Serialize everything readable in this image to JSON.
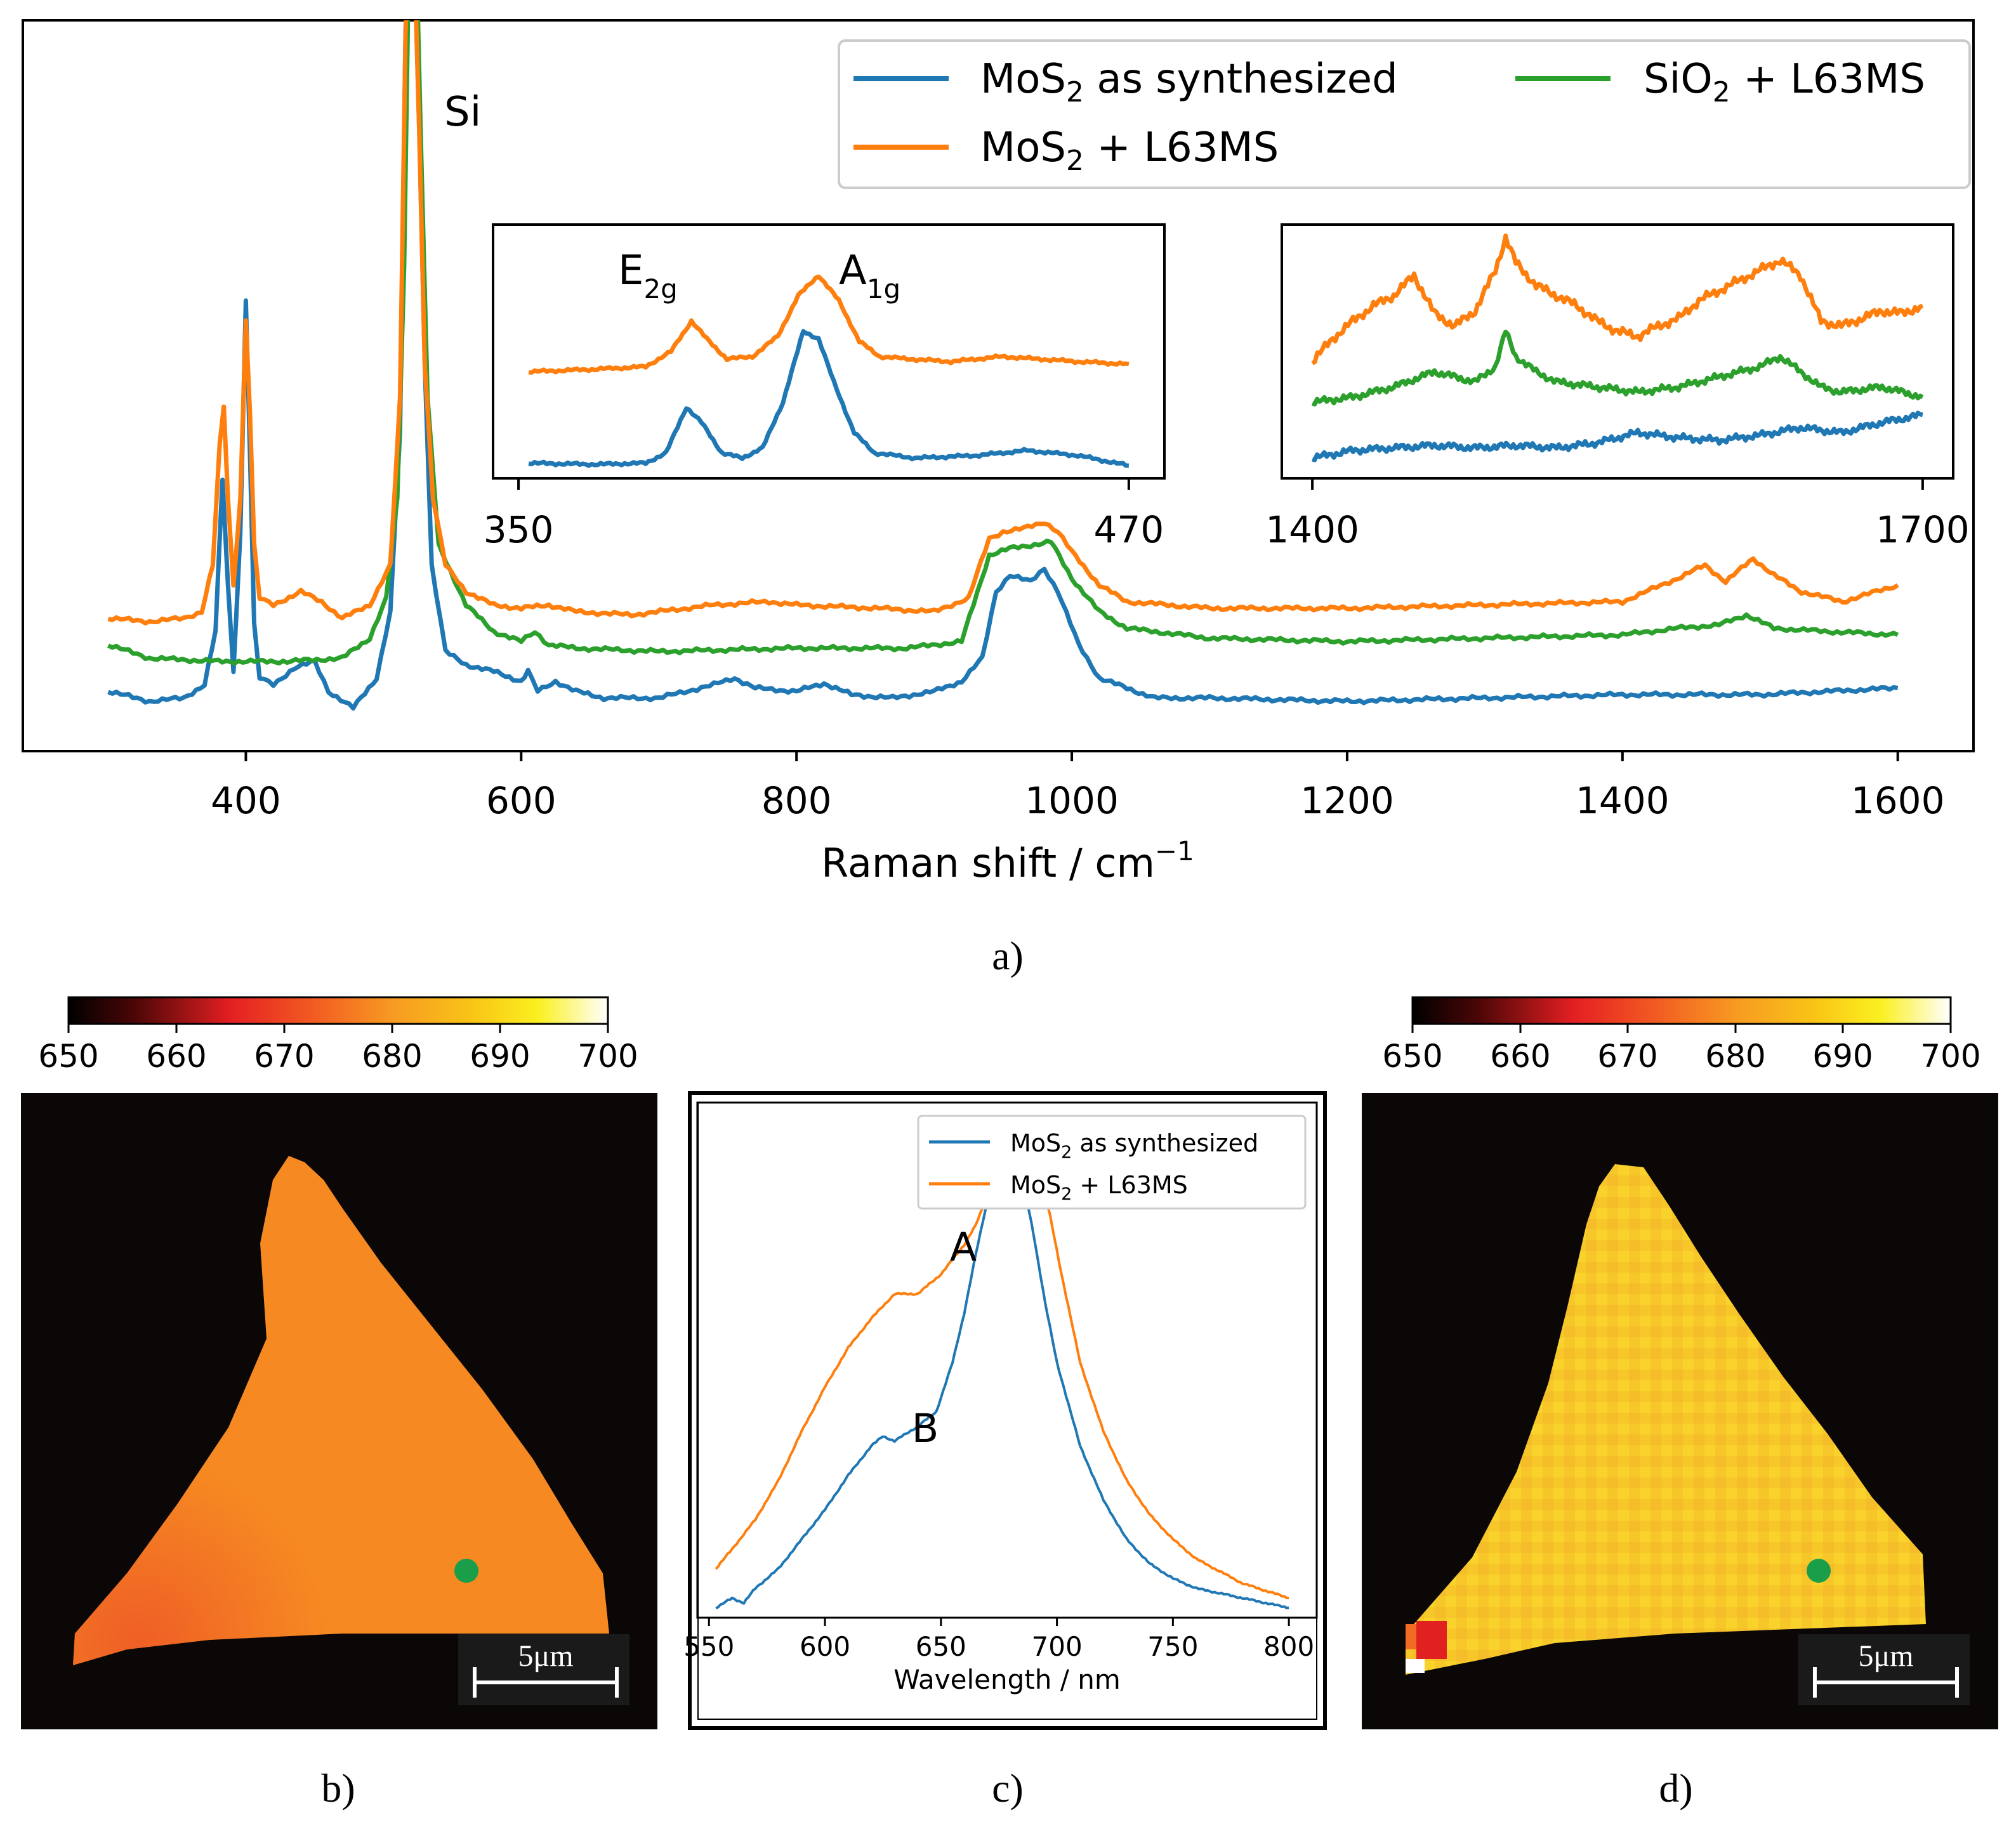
{
  "colors": {
    "blue": "#1f77b4",
    "orange": "#ff7f0e",
    "green": "#2ca02c",
    "map_bg": "#0b0707",
    "dot": "#1a9e4a"
  },
  "captions": {
    "a": "a)",
    "b": "b)",
    "c": "c)",
    "d": "d)"
  },
  "chart_data": [
    {
      "id": "a",
      "type": "line",
      "title": "",
      "xlabel_main": "Raman shift / cm",
      "xlabel_sup": "−1",
      "ylabel": "",
      "xlim": [
        238,
        1655
      ],
      "ylim": [
        -0.3,
        10.7
      ],
      "xticks": [
        400,
        600,
        800,
        1000,
        1200,
        1400,
        1600
      ],
      "xtick_labels": [
        "400",
        "600",
        "800",
        "1000",
        "1200",
        "1400",
        "1600"
      ],
      "annotations": [
        {
          "text": "Si",
          "x": 540,
          "y": 9.35
        }
      ],
      "legend": {
        "placement": "top-right",
        "entries": [
          {
            "pre": "MoS",
            "sub": "2",
            "post": " as synthesized",
            "series": "MoS2 as synthesized"
          },
          {
            "pre": "SiO",
            "sub": "2",
            "post": " + L63MS",
            "series": "SiO2 + L63MS"
          },
          {
            "pre": "MoS",
            "sub": "2",
            "post": " + L63MS",
            "series": "MoS2 + L63MS"
          }
        ]
      },
      "series": [
        {
          "name": "MoS2 as synthesized",
          "color": "blue",
          "x": [
            300,
            330,
            355,
            370,
            378,
            383,
            387,
            391,
            396,
            400,
            403,
            406,
            410,
            420,
            435,
            450,
            460,
            478,
            495,
            505,
            512,
            516,
            519,
            522,
            526,
            530,
            535,
            545,
            560,
            580,
            600,
            605,
            612,
            625,
            640,
            660,
            700,
            740,
            755,
            770,
            800,
            820,
            840,
            870,
            900,
            920,
            935,
            945,
            955,
            970,
            980,
            990,
            1005,
            1020,
            1040,
            1060,
            1100,
            1200,
            1300,
            1400,
            1500,
            1600
          ],
          "y": [
            0.6,
            0.45,
            0.5,
            0.7,
            1.5,
            3.8,
            2.2,
            0.9,
            3.0,
            6.5,
            4.2,
            1.6,
            0.8,
            0.7,
            0.95,
            1.05,
            0.6,
            0.35,
            0.8,
            1.8,
            4.5,
            10.5,
            12.5,
            12.0,
            9.0,
            5.5,
            2.5,
            1.2,
            1.0,
            0.9,
            0.75,
            0.9,
            0.6,
            0.75,
            0.6,
            0.5,
            0.5,
            0.7,
            0.8,
            0.65,
            0.6,
            0.72,
            0.55,
            0.5,
            0.6,
            0.75,
            1.1,
            2.1,
            2.35,
            2.25,
            2.45,
            2.1,
            1.3,
            0.8,
            0.65,
            0.5,
            0.5,
            0.45,
            0.5,
            0.55,
            0.55,
            0.65
          ]
        },
        {
          "name": "SiO2 + L63MS",
          "color": "green",
          "x": [
            300,
            330,
            380,
            430,
            470,
            490,
            502,
            510,
            515,
            519,
            523,
            527,
            532,
            540,
            560,
            580,
            600,
            610,
            620,
            640,
            700,
            800,
            880,
            920,
            940,
            955,
            970,
            985,
            1000,
            1020,
            1040,
            1100,
            1200,
            1300,
            1400,
            1440,
            1470,
            1490,
            1510,
            1550,
            1600
          ],
          "y": [
            1.3,
            1.1,
            1.05,
            1.05,
            1.1,
            1.4,
            2.0,
            3.5,
            7.0,
            12.5,
            12.5,
            9.0,
            5.0,
            2.8,
            1.9,
            1.5,
            1.35,
            1.5,
            1.3,
            1.25,
            1.2,
            1.25,
            1.25,
            1.35,
            2.65,
            2.75,
            2.8,
            2.85,
            2.3,
            1.8,
            1.55,
            1.4,
            1.35,
            1.4,
            1.45,
            1.55,
            1.6,
            1.75,
            1.55,
            1.5,
            1.45
          ]
        },
        {
          "name": "MoS2 + L63MS",
          "color": "orange",
          "x": [
            300,
            330,
            355,
            368,
            376,
            381,
            384,
            387,
            391,
            396,
            400,
            403,
            406,
            410,
            420,
            440,
            455,
            470,
            490,
            505,
            512,
            516,
            519,
            522,
            526,
            530,
            536,
            545,
            560,
            580,
            600,
            620,
            640,
            680,
            740,
            780,
            800,
            860,
            900,
            925,
            940,
            950,
            965,
            980,
            990,
            1000,
            1020,
            1040,
            1100,
            1200,
            1300,
            1400,
            1440,
            1460,
            1475,
            1495,
            1510,
            1530,
            1560,
            1600
          ],
          "y": [
            1.7,
            1.65,
            1.7,
            1.8,
            2.5,
            4.3,
            4.9,
            3.5,
            2.2,
            3.5,
            6.2,
            4.8,
            2.8,
            2.0,
            1.9,
            2.1,
            1.95,
            1.7,
            1.9,
            2.5,
            5.0,
            10.5,
            12.5,
            12.0,
            9.0,
            5.5,
            3.5,
            2.5,
            2.1,
            1.9,
            1.85,
            1.9,
            1.8,
            1.75,
            1.9,
            1.95,
            1.9,
            1.85,
            1.8,
            2.0,
            2.9,
            3.0,
            3.05,
            3.15,
            3.0,
            2.7,
            2.2,
            1.95,
            1.85,
            1.85,
            1.9,
            1.95,
            2.3,
            2.5,
            2.25,
            2.6,
            2.35,
            2.1,
            1.95,
            2.2
          ]
        }
      ]
    },
    {
      "id": "a-inset-left",
      "type": "line",
      "xlim": [
        345,
        477
      ],
      "ylim": [
        0,
        1
      ],
      "xtick_labels": [
        "350",
        "470"
      ],
      "xticks": [
        350,
        470
      ],
      "annotations": [
        {
          "main": "E",
          "sub": "2g",
          "x": 382,
          "y": 0.88
        },
        {
          "main": "A",
          "sub": "1g",
          "x": 414,
          "y": 0.88
        }
      ],
      "series": [
        {
          "name": "MoS2 + L63MS",
          "color": "orange",
          "x": [
            352,
            365,
            375,
            380,
            384,
            387,
            391,
            396,
            401,
            405,
            409,
            413,
            417,
            421,
            427,
            435,
            445,
            460,
            470
          ],
          "y": [
            0.42,
            0.43,
            0.44,
            0.5,
            0.62,
            0.55,
            0.47,
            0.48,
            0.56,
            0.72,
            0.8,
            0.7,
            0.54,
            0.48,
            0.47,
            0.46,
            0.48,
            0.46,
            0.45
          ]
        },
        {
          "name": "MoS2 as synthesized",
          "color": "blue",
          "x": [
            352,
            365,
            375,
            379,
            383,
            386,
            390,
            394,
            398,
            402,
            406,
            409,
            412,
            416,
            420,
            428,
            440,
            450,
            460,
            470
          ],
          "y": [
            0.06,
            0.055,
            0.06,
            0.1,
            0.28,
            0.22,
            0.1,
            0.08,
            0.12,
            0.3,
            0.58,
            0.55,
            0.38,
            0.18,
            0.1,
            0.08,
            0.09,
            0.11,
            0.09,
            0.05
          ]
        }
      ]
    },
    {
      "id": "a-inset-right",
      "type": "line",
      "xlim": [
        1385,
        1715
      ],
      "ylim": [
        0,
        1
      ],
      "xtick_labels": [
        "1400",
        "1700"
      ],
      "xticks": [
        1400,
        1700
      ],
      "series": [
        {
          "name": "MoS2 + L63MS",
          "color": "orange",
          "x": [
            1400,
            1410,
            1420,
            1430,
            1440,
            1450,
            1460,
            1470,
            1480,
            1490,
            1495,
            1500,
            1510,
            1520,
            1530,
            1540,
            1550,
            1560,
            1570,
            1580,
            1590,
            1600,
            1610,
            1620,
            1630,
            1640,
            1650,
            1660,
            1670,
            1680,
            1690,
            1700
          ],
          "y": [
            0.46,
            0.55,
            0.62,
            0.68,
            0.72,
            0.8,
            0.65,
            0.6,
            0.66,
            0.82,
            0.95,
            0.85,
            0.76,
            0.72,
            0.68,
            0.62,
            0.58,
            0.56,
            0.6,
            0.63,
            0.7,
            0.74,
            0.78,
            0.82,
            0.86,
            0.8,
            0.62,
            0.6,
            0.63,
            0.66,
            0.65,
            0.68
          ]
        },
        {
          "name": "SiO2 + L63MS",
          "color": "green",
          "x": [
            1400,
            1420,
            1440,
            1460,
            1480,
            1490,
            1495,
            1500,
            1510,
            1520,
            1540,
            1560,
            1580,
            1600,
            1620,
            1630,
            1640,
            1650,
            1660,
            1680,
            1700
          ],
          "y": [
            0.3,
            0.32,
            0.36,
            0.42,
            0.38,
            0.44,
            0.58,
            0.48,
            0.42,
            0.38,
            0.36,
            0.34,
            0.36,
            0.4,
            0.44,
            0.48,
            0.42,
            0.36,
            0.34,
            0.36,
            0.32
          ]
        },
        {
          "name": "MoS2 as synthesized",
          "color": "blue",
          "x": [
            1400,
            1420,
            1440,
            1460,
            1480,
            1500,
            1520,
            1540,
            1560,
            1580,
            1600,
            1620,
            1640,
            1660,
            1680,
            1700
          ],
          "y": [
            0.08,
            0.11,
            0.12,
            0.13,
            0.12,
            0.13,
            0.12,
            0.14,
            0.18,
            0.16,
            0.15,
            0.17,
            0.2,
            0.18,
            0.22,
            0.25
          ]
        }
      ]
    },
    {
      "id": "b",
      "type": "heatmap",
      "colorbar": {
        "min": 650,
        "max": 700,
        "tick_labels": [
          "650",
          "660",
          "670",
          "680",
          "690",
          "700"
        ]
      },
      "map_value": 678,
      "scalebar_label": "5μm"
    },
    {
      "id": "c",
      "type": "line",
      "xlabel": "Wavelength / nm",
      "ylabel": "",
      "xlim": [
        545,
        812
      ],
      "ylim": [
        0,
        1.05
      ],
      "xticks": [
        550,
        600,
        650,
        700,
        750,
        800
      ],
      "xtick_labels": [
        "550",
        "600",
        "650",
        "700",
        "750",
        "800"
      ],
      "annotations": [
        {
          "text": "A",
          "x": 656,
          "y": 0.85
        },
        {
          "text": "B",
          "x": 640,
          "y": 0.42
        }
      ],
      "legend": {
        "placement": "top-right",
        "entries": [
          {
            "pre": "MoS",
            "sub": "2",
            "post": " as synthesized",
            "series": "MoS2 as synthesized"
          },
          {
            "pre": "MoS",
            "sub": "2",
            "post": " + L63MS",
            "series": "MoS2 + L63MS"
          }
        ]
      },
      "series": [
        {
          "name": "MoS2 as synthesized",
          "color": "blue",
          "x": [
            553,
            560,
            565,
            570,
            580,
            590,
            600,
            610,
            620,
            625,
            630,
            640,
            648,
            655,
            660,
            665,
            670,
            675,
            678,
            680,
            682,
            685,
            690,
            695,
            700,
            710,
            720,
            730,
            740,
            750,
            760,
            780,
            800
          ],
          "y": [
            0.02,
            0.04,
            0.03,
            0.06,
            0.1,
            0.16,
            0.22,
            0.29,
            0.35,
            0.37,
            0.36,
            0.39,
            0.42,
            0.52,
            0.62,
            0.74,
            0.85,
            0.92,
            0.95,
            0.96,
            0.95,
            0.9,
            0.78,
            0.64,
            0.52,
            0.35,
            0.24,
            0.16,
            0.11,
            0.08,
            0.06,
            0.04,
            0.02
          ]
        },
        {
          "name": "MoS2 + L63MS",
          "color": "orange",
          "x": [
            553,
            560,
            570,
            580,
            590,
            600,
            610,
            620,
            630,
            640,
            650,
            660,
            665,
            670,
            675,
            680,
            684,
            688,
            692,
            697,
            702,
            710,
            720,
            730,
            740,
            750,
            760,
            780,
            800
          ],
          "y": [
            0.1,
            0.14,
            0.2,
            0.28,
            0.38,
            0.47,
            0.55,
            0.61,
            0.66,
            0.66,
            0.7,
            0.76,
            0.8,
            0.86,
            0.9,
            0.96,
            1.0,
            0.98,
            0.92,
            0.82,
            0.7,
            0.52,
            0.38,
            0.28,
            0.21,
            0.16,
            0.12,
            0.07,
            0.04
          ]
        }
      ]
    },
    {
      "id": "d",
      "type": "heatmap",
      "colorbar": {
        "min": 650,
        "max": 700,
        "tick_labels": [
          "650",
          "660",
          "670",
          "680",
          "690",
          "700"
        ]
      },
      "map_value": 686,
      "scalebar_label": "5μm"
    }
  ]
}
